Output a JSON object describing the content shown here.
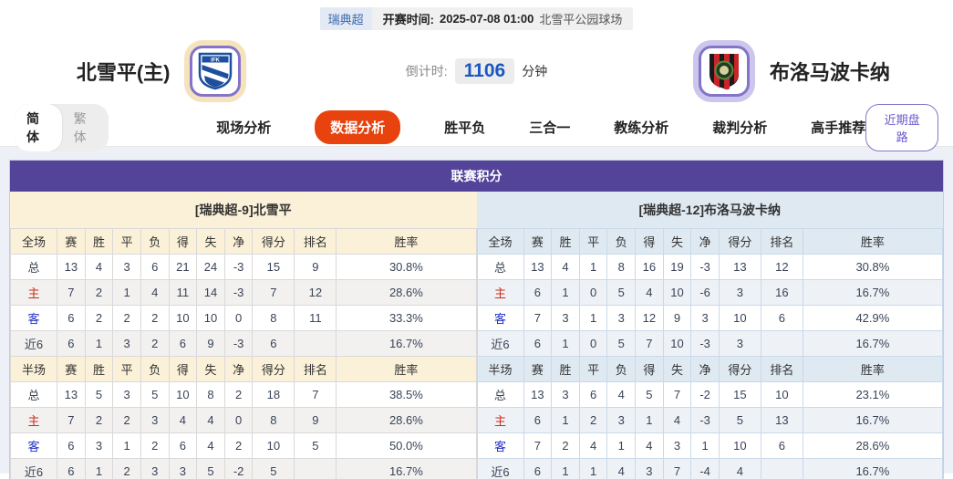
{
  "match_bar": {
    "league": "瑞典超",
    "kickoff_label": "开赛时间:",
    "kickoff_time": "2025-07-08 01:00",
    "venue": "北雪平公园球场"
  },
  "teams": {
    "home": {
      "name": "北雪平(主)"
    },
    "away": {
      "name": "布洛马波卡纳"
    }
  },
  "countdown": {
    "label": "倒计时:",
    "value": "1106",
    "unit": "分钟"
  },
  "lang_toggle": {
    "simplified": "简体",
    "traditional": "繁体"
  },
  "nav": {
    "tabs": [
      {
        "label": "现场分析",
        "active": false
      },
      {
        "label": "数据分析",
        "active": true
      },
      {
        "label": "胜平负",
        "active": false
      },
      {
        "label": "三合一",
        "active": false
      },
      {
        "label": "教练分析",
        "active": false
      },
      {
        "label": "裁判分析",
        "active": false
      },
      {
        "label": "高手推荐",
        "active": false
      }
    ],
    "recent_button": "近期盘路"
  },
  "colors": {
    "accent_purple": "#53449a",
    "active_tab_red": "#e8420e",
    "home_section_bg": "#fbf1d8",
    "away_section_bg": "#dfe9f2",
    "countdown_blue": "#1b57c2"
  },
  "standings": {
    "title": "联赛积分",
    "columns_full": [
      "全场",
      "赛",
      "胜",
      "平",
      "负",
      "得",
      "失",
      "净",
      "得分",
      "排名",
      "胜率"
    ],
    "columns_half": [
      "半场",
      "赛",
      "胜",
      "平",
      "负",
      "得",
      "失",
      "净",
      "得分",
      "排名",
      "胜率"
    ],
    "sides": [
      {
        "id": "home",
        "theme": "cream",
        "header": "[瑞典超-9]北雪平",
        "full": [
          {
            "label": "总",
            "type": "total",
            "cells": [
              "13",
              "4",
              "3",
              "6",
              "21",
              "24",
              "-3",
              "15",
              "9",
              "30.8%"
            ]
          },
          {
            "label": "主",
            "type": "home",
            "cells": [
              "7",
              "2",
              "1",
              "4",
              "11",
              "14",
              "-3",
              "7",
              "12",
              "28.6%"
            ]
          },
          {
            "label": "客",
            "type": "away",
            "cells": [
              "6",
              "2",
              "2",
              "2",
              "10",
              "10",
              "0",
              "8",
              "11",
              "33.3%"
            ]
          },
          {
            "label": "近6",
            "type": "recent",
            "cells": [
              "6",
              "1",
              "3",
              "2",
              "6",
              "9",
              "-3",
              "6",
              "",
              "16.7%"
            ]
          }
        ],
        "half": [
          {
            "label": "总",
            "type": "total",
            "cells": [
              "13",
              "5",
              "3",
              "5",
              "10",
              "8",
              "2",
              "18",
              "7",
              "38.5%"
            ]
          },
          {
            "label": "主",
            "type": "home",
            "cells": [
              "7",
              "2",
              "2",
              "3",
              "4",
              "4",
              "0",
              "8",
              "9",
              "28.6%"
            ]
          },
          {
            "label": "客",
            "type": "away",
            "cells": [
              "6",
              "3",
              "1",
              "2",
              "6",
              "4",
              "2",
              "10",
              "5",
              "50.0%"
            ]
          },
          {
            "label": "近6",
            "type": "recent",
            "cells": [
              "6",
              "1",
              "2",
              "3",
              "3",
              "5",
              "-2",
              "5",
              "",
              "16.7%"
            ]
          }
        ]
      },
      {
        "id": "away",
        "theme": "blue",
        "header": "[瑞典超-12]布洛马波卡纳",
        "full": [
          {
            "label": "总",
            "type": "total",
            "cells": [
              "13",
              "4",
              "1",
              "8",
              "16",
              "19",
              "-3",
              "13",
              "12",
              "30.8%"
            ]
          },
          {
            "label": "主",
            "type": "home",
            "cells": [
              "6",
              "1",
              "0",
              "5",
              "4",
              "10",
              "-6",
              "3",
              "16",
              "16.7%"
            ]
          },
          {
            "label": "客",
            "type": "away",
            "cells": [
              "7",
              "3",
              "1",
              "3",
              "12",
              "9",
              "3",
              "10",
              "6",
              "42.9%"
            ]
          },
          {
            "label": "近6",
            "type": "recent",
            "cells": [
              "6",
              "1",
              "0",
              "5",
              "7",
              "10",
              "-3",
              "3",
              "",
              "16.7%"
            ]
          }
        ],
        "half": [
          {
            "label": "总",
            "type": "total",
            "cells": [
              "13",
              "3",
              "6",
              "4",
              "5",
              "7",
              "-2",
              "15",
              "10",
              "23.1%"
            ]
          },
          {
            "label": "主",
            "type": "home",
            "cells": [
              "6",
              "1",
              "2",
              "3",
              "1",
              "4",
              "-3",
              "5",
              "13",
              "16.7%"
            ]
          },
          {
            "label": "客",
            "type": "away",
            "cells": [
              "7",
              "2",
              "4",
              "1",
              "4",
              "3",
              "1",
              "10",
              "6",
              "28.6%"
            ]
          },
          {
            "label": "近6",
            "type": "recent",
            "cells": [
              "6",
              "1",
              "1",
              "4",
              "3",
              "7",
              "-4",
              "4",
              "",
              "16.7%"
            ]
          }
        ]
      }
    ]
  }
}
